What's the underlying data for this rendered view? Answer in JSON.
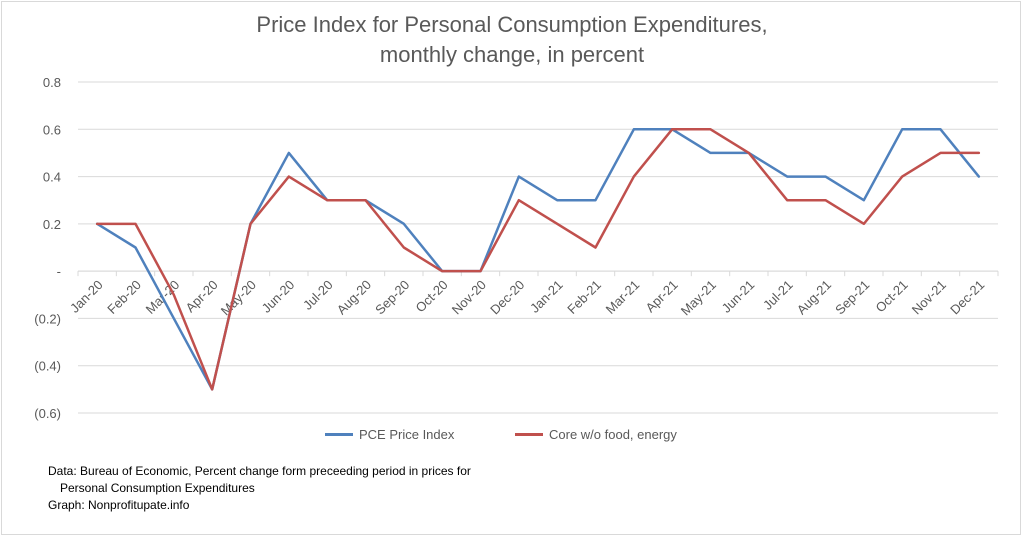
{
  "chart_data": {
    "type": "line",
    "title_lines": [
      "Price Index for Personal Consumption Expenditures,",
      "monthly change, in percent"
    ],
    "xlabel": "",
    "ylabel": "",
    "ylim": [
      -0.6,
      0.8
    ],
    "yticks": [
      0.8,
      0.6,
      0.4,
      0.2,
      0,
      -0.2,
      -0.4,
      -0.6
    ],
    "ytick_labels": [
      "0.8",
      "0.6",
      "0.4",
      "0.2",
      "-",
      "(0.2)",
      "(0.4)",
      "(0.6)"
    ],
    "grid": true,
    "legend_position": "bottom",
    "categories": [
      "Jan-20",
      "Feb-20",
      "Mar-20",
      "Apr-20",
      "May-20",
      "Jun-20",
      "Jul-20",
      "Aug-20",
      "Sep-20",
      "Oct-20",
      "Nov-20",
      "Dec-20",
      "Jan-21",
      "Feb-21",
      "Mar-21",
      "Apr-21",
      "May-21",
      "Jun-21",
      "Jul-21",
      "Aug-21",
      "Sep-21",
      "Oct-21",
      "Nov-21",
      "Dec-21"
    ],
    "series": [
      {
        "name": "PCE Price Index",
        "color": "#4f81bd",
        "values": [
          0.2,
          0.1,
          -0.2,
          -0.5,
          0.2,
          0.5,
          0.3,
          0.3,
          0.2,
          0.0,
          0.0,
          0.4,
          0.3,
          0.3,
          0.6,
          0.6,
          0.5,
          0.5,
          0.4,
          0.4,
          0.3,
          0.6,
          0.6,
          0.4
        ]
      },
      {
        "name": "Core w/o food, energy",
        "color": "#c0504d",
        "values": [
          0.2,
          0.2,
          -0.1,
          -0.5,
          0.2,
          0.4,
          0.3,
          0.3,
          0.1,
          0.0,
          0.0,
          0.3,
          0.2,
          0.1,
          0.4,
          0.6,
          0.6,
          0.5,
          0.3,
          0.3,
          0.2,
          0.4,
          0.5,
          0.5
        ]
      }
    ]
  },
  "note": {
    "line1": "Data: Bureau of Economic, Percent change form preceeding period in prices for",
    "line2": "Personal Consumption Expenditures",
    "line3": "Graph:  Nonprofitupate.info"
  }
}
